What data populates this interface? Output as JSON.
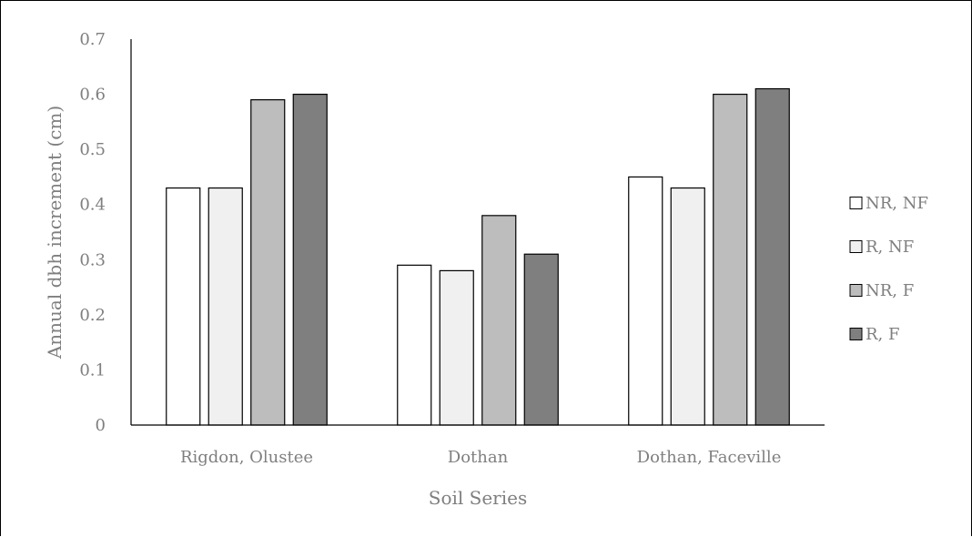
{
  "chart_data": {
    "type": "bar",
    "title": "",
    "xlabel": "Soil Series",
    "ylabel": "Annual dbh increment (cm)",
    "ylim": [
      0,
      0.7
    ],
    "yticks": [
      "0",
      "0.1",
      "0.2",
      "0.3",
      "0.4",
      "0.5",
      "0.6",
      "0.7"
    ],
    "grid": false,
    "legend_position": "right",
    "categories": [
      "Rigdon, Olustee",
      "Dothan",
      "Dothan, Faceville"
    ],
    "series": [
      {
        "name": "NR, NF",
        "color": "#ffffff",
        "values": [
          0.43,
          0.29,
          0.45
        ]
      },
      {
        "name": "R, NF",
        "color": "#f0f0f0",
        "values": [
          0.43,
          0.28,
          0.43
        ]
      },
      {
        "name": "NR, F",
        "color": "#bdbdbd",
        "values": [
          0.59,
          0.38,
          0.6
        ]
      },
      {
        "name": "R, F",
        "color": "#7f7f7f",
        "values": [
          0.6,
          0.31,
          0.61
        ]
      }
    ],
    "text_color": "#7f7f7f",
    "axis_color": "#000000"
  }
}
